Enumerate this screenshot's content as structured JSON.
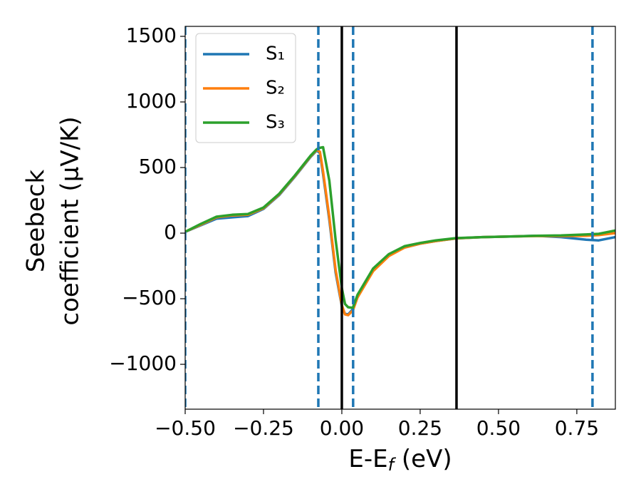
{
  "chart_data": {
    "type": "line",
    "x_label": {
      "text": "E-E",
      "sub": "f",
      "after": " (eV)"
    },
    "y_label": [
      "Seebeck",
      "coefficient  (μV/K)"
    ],
    "x": [
      -0.5,
      -0.45,
      -0.4,
      -0.35,
      -0.3,
      -0.25,
      -0.2,
      -0.15,
      -0.1,
      -0.08,
      -0.07,
      -0.06,
      -0.04,
      -0.02,
      0,
      0.01,
      0.02,
      0.035,
      0.05,
      0.1,
      0.15,
      0.2,
      0.25,
      0.3,
      0.365,
      0.45,
      0.55,
      0.62,
      0.7,
      0.78,
      0.82,
      0.873
    ],
    "series": [
      {
        "name": "S₁",
        "color": "#1f77b4",
        "values": [
          10,
          60,
          110,
          120,
          130,
          185,
          290,
          430,
          580,
          630,
          610,
          450,
          100,
          -300,
          -560,
          -615,
          -620,
          -580,
          -480,
          -280,
          -170,
          -110,
          -80,
          -60,
          -40,
          -30,
          -25,
          -20,
          -30,
          -50,
          -55,
          -30
        ]
      },
      {
        "name": "S₂",
        "color": "#ff7f0e",
        "values": [
          10,
          65,
          120,
          135,
          140,
          190,
          295,
          435,
          585,
          635,
          620,
          470,
          120,
          -280,
          -550,
          -620,
          -625,
          -590,
          -490,
          -290,
          -175,
          -110,
          -80,
          -60,
          -40,
          -30,
          -25,
          -22,
          -22,
          -20,
          -15,
          0
        ]
      },
      {
        "name": "S₃",
        "color": "#2ca02c",
        "values": [
          10,
          70,
          125,
          140,
          145,
          195,
          300,
          440,
          590,
          640,
          650,
          655,
          400,
          -50,
          -420,
          -540,
          -565,
          -570,
          -470,
          -270,
          -160,
          -100,
          -75,
          -55,
          -38,
          -30,
          -25,
          -20,
          -18,
          -10,
          -5,
          20
        ]
      }
    ],
    "xlim": [
      -0.5,
      0.873
    ],
    "ylim": [
      -1342,
      1576
    ],
    "xticks": [
      {
        "value": -0.5,
        "label": "−0.50"
      },
      {
        "value": -0.25,
        "label": "−0.25"
      },
      {
        "value": 0,
        "label": "0.00"
      },
      0.25,
      {
        "value": 0.5,
        "label": "0.50"
      },
      0.75
    ],
    "yticks": [
      {
        "value": -1000,
        "label": "−1000"
      },
      {
        "value": -500,
        "label": "−500"
      },
      0,
      500,
      1000,
      1500
    ],
    "vlines_dashed": {
      "color": "#1f77b4",
      "values": [
        -0.5,
        -0.075,
        0.036,
        0.8
      ]
    },
    "vlines_solid": {
      "color": "#000000",
      "values": [
        0,
        0.366
      ]
    },
    "legend": "upper left",
    "grid": false
  }
}
